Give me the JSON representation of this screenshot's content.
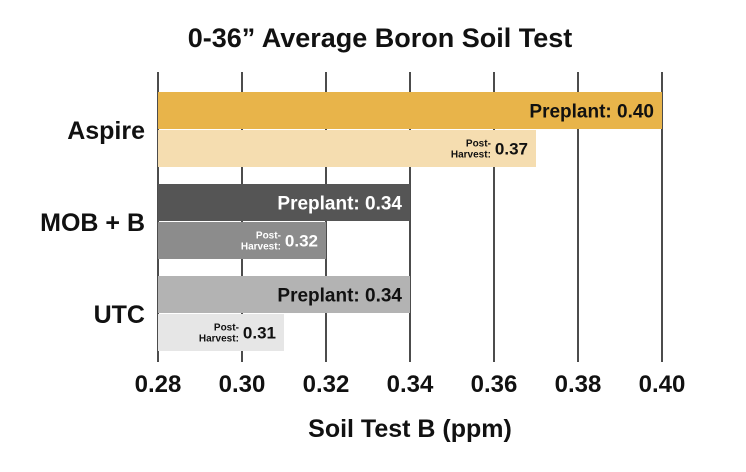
{
  "chart_data": {
    "type": "bar",
    "orientation": "horizontal",
    "title": "0-36” Average Boron Soil Test",
    "xlabel": "Soil Test B (ppm)",
    "ylabel": "",
    "xlim": [
      0.28,
      0.4
    ],
    "xticks": [
      "0.28",
      "0.30",
      "0.32",
      "0.34",
      "0.36",
      "0.38",
      "0.40"
    ],
    "grid": true,
    "categories": [
      "Aspire",
      "MOB + B",
      "UTC"
    ],
    "bars": [
      {
        "category": "Aspire",
        "kind": "preplant",
        "value": 0.4,
        "label_prefix": "Preplant:",
        "value_text": "0.40",
        "color": "#e8b44a",
        "text_color": "#111111"
      },
      {
        "category": "Aspire",
        "kind": "postharvest",
        "value": 0.37,
        "label_prefix_lines": [
          "Post-",
          "Harvest:"
        ],
        "value_text": "0.37",
        "color": "#f5ddb0",
        "text_color": "#111111"
      },
      {
        "category": "MOB + B",
        "kind": "preplant",
        "value": 0.34,
        "label_prefix": "Preplant:",
        "value_text": "0.34",
        "color": "#555555",
        "text_color": "#ffffff"
      },
      {
        "category": "MOB + B",
        "kind": "postharvest",
        "value": 0.32,
        "label_prefix_lines": [
          "Post-",
          "Harvest:"
        ],
        "value_text": "0.32",
        "color": "#8c8c8c",
        "text_color": "#ffffff"
      },
      {
        "category": "UTC",
        "kind": "preplant",
        "value": 0.34,
        "label_prefix": "Preplant:",
        "value_text": "0.34",
        "color": "#b3b3b3",
        "text_color": "#111111"
      },
      {
        "category": "UTC",
        "kind": "postharvest",
        "value": 0.31,
        "label_prefix_lines": [
          "Post-",
          "Harvest:"
        ],
        "value_text": "0.31",
        "color": "#e6e6e6",
        "text_color": "#111111"
      }
    ]
  }
}
